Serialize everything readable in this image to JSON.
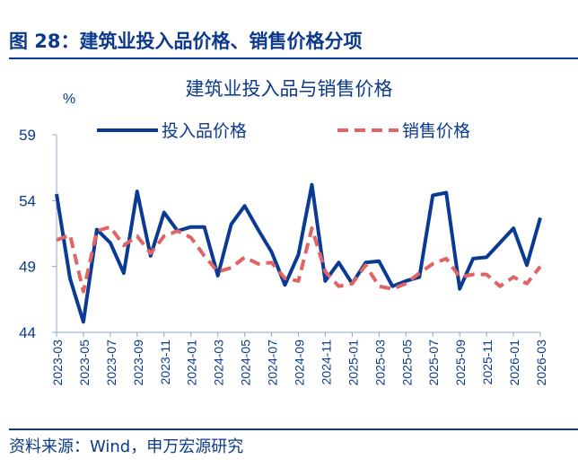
{
  "figure_title": "图 28：建筑业投入品价格、销售价格分项",
  "source": "资料来源：Wind，申万宏源研究",
  "colors": {
    "input": "#0B3A94",
    "sales": "#E06464",
    "text": "#0B3A8C"
  },
  "chart_data": {
    "type": "line",
    "title": "建筑业投入品与销售价格",
    "ylabel": "%",
    "xlabel": "",
    "ylim": [
      44,
      59
    ],
    "yticks": [
      44,
      49,
      54,
      59
    ],
    "grid": false,
    "legend_position": "top",
    "x": [
      "2023-03",
      "2023-04",
      "2023-05",
      "2023-06",
      "2023-07",
      "2023-08",
      "2023-09",
      "2023-10",
      "2023-11",
      "2023-12",
      "2024-01",
      "2024-02",
      "2024-03",
      "2024-04",
      "2024-05",
      "2024-06",
      "2024-07",
      "2024-08",
      "2024-09",
      "2024-10",
      "2024-11",
      "2024-12",
      "2025-01",
      "2025-02",
      "2025-03",
      "2025-04",
      "2025-05",
      "2025-06",
      "2025-07",
      "2025-08",
      "2025-09",
      "2025-10",
      "2025-11",
      "2025-12",
      "2026-01",
      "2026-02",
      "2026-03"
    ],
    "xtick_labels": [
      "2023-03",
      "2023-05",
      "2023-07",
      "2023-09",
      "2023-11",
      "2024-01",
      "2024-03",
      "2024-05",
      "2024-07",
      "2024-09",
      "2024-11",
      "2025-01",
      "2025-03",
      "2025-05",
      "2025-07",
      "2025-09",
      "2025-11",
      "2026-01",
      "2026-03"
    ],
    "series": [
      {
        "name": "投入品价格",
        "style": "solid",
        "values": [
          54.5,
          48.1,
          44.8,
          51.8,
          50.8,
          48.5,
          54.7,
          49.8,
          53.1,
          51.7,
          52.0,
          52.0,
          48.3,
          52.2,
          53.6,
          51.8,
          50.1,
          47.6,
          49.9,
          55.2,
          47.9,
          49.3,
          47.7,
          49.3,
          49.4,
          47.5,
          47.9,
          48.2,
          54.4,
          54.6,
          47.3,
          49.6,
          49.7,
          50.8,
          51.9,
          49.1,
          52.7
        ]
      },
      {
        "name": "销售价格",
        "style": "dashed",
        "values": [
          51.0,
          51.4,
          47.1,
          51.7,
          52.0,
          50.6,
          51.3,
          50.0,
          51.3,
          51.7,
          51.2,
          49.8,
          48.6,
          48.9,
          49.7,
          49.2,
          49.3,
          48.1,
          47.9,
          51.9,
          48.6,
          47.5,
          47.7,
          49.1,
          47.5,
          47.3,
          47.7,
          48.5,
          49.2,
          49.6,
          48.2,
          48.4,
          48.4,
          47.5,
          48.2,
          47.7,
          49.0
        ]
      }
    ]
  }
}
